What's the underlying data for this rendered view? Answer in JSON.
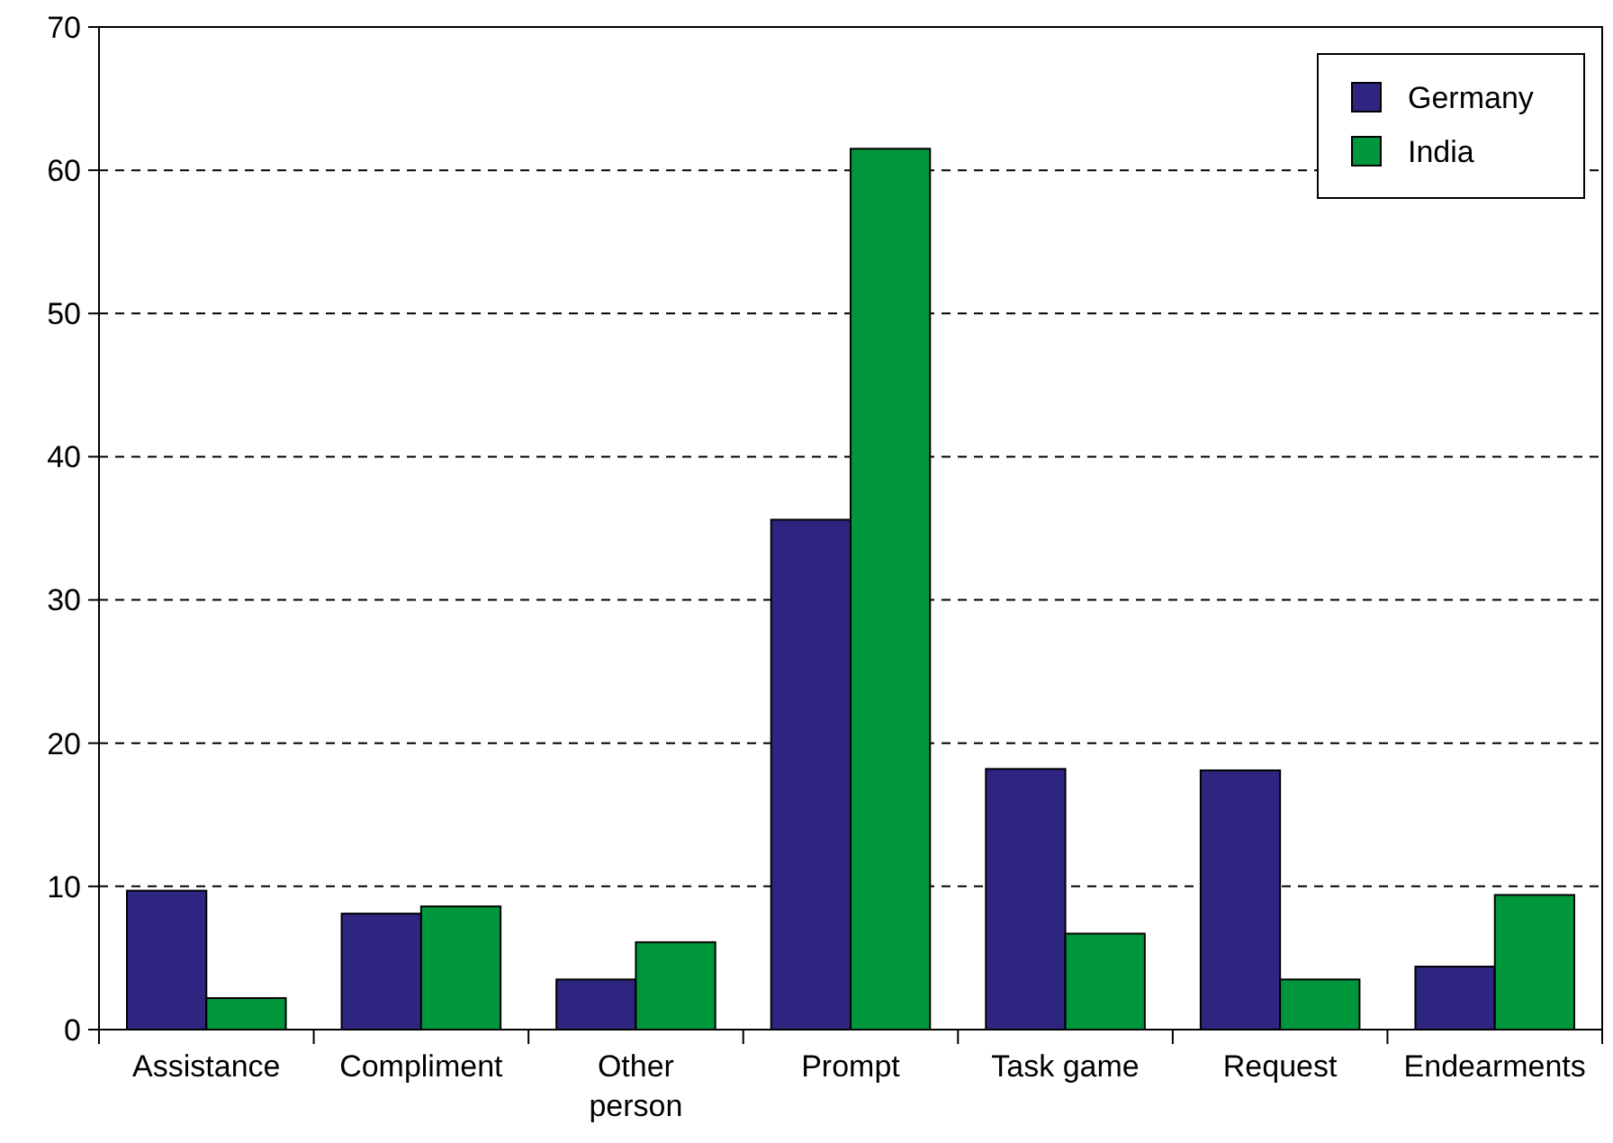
{
  "chart_data": {
    "type": "bar",
    "categories": [
      "Assistance",
      "Compliment",
      "Other person",
      "Prompt",
      "Task game",
      "Request",
      "Endearments"
    ],
    "series": [
      {
        "name": "Germany",
        "color": "#2e2580",
        "values": [
          9.7,
          8.1,
          3.5,
          35.6,
          18.2,
          18.1,
          4.4
        ]
      },
      {
        "name": "India",
        "color": "#00963c",
        "values": [
          2.2,
          8.6,
          6.1,
          61.5,
          6.7,
          3.5,
          9.4
        ]
      }
    ],
    "ylim": [
      0,
      70
    ],
    "yticks": [
      0,
      10,
      20,
      30,
      40,
      50,
      60,
      70
    ],
    "grid": "y",
    "legend": "top right"
  }
}
